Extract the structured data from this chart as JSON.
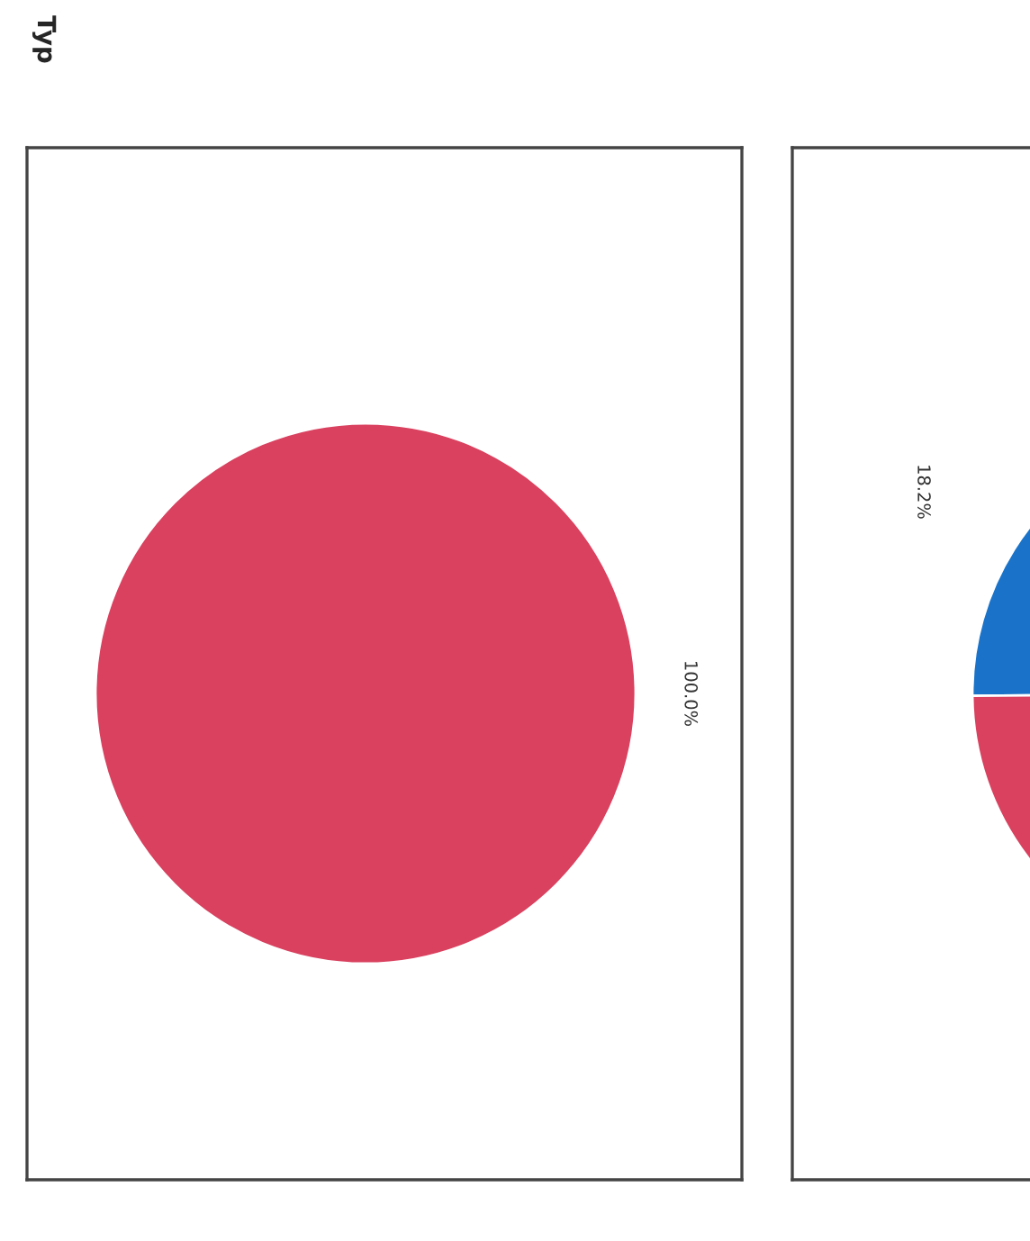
{
  "chart_data": [
    {
      "type": "pie",
      "title": "Typ",
      "categories": [
        null
      ],
      "values": [
        100
      ],
      "colors": [
        "#d9415f"
      ],
      "value_labels": [
        "100.0%"
      ]
    },
    {
      "type": "pie",
      "categories": [
        null,
        null
      ],
      "values": [
        18.2,
        81.8
      ],
      "colors": [
        "#1a73c8",
        "#d9415f"
      ],
      "value_labels": [
        "18.2%",
        null
      ]
    }
  ]
}
